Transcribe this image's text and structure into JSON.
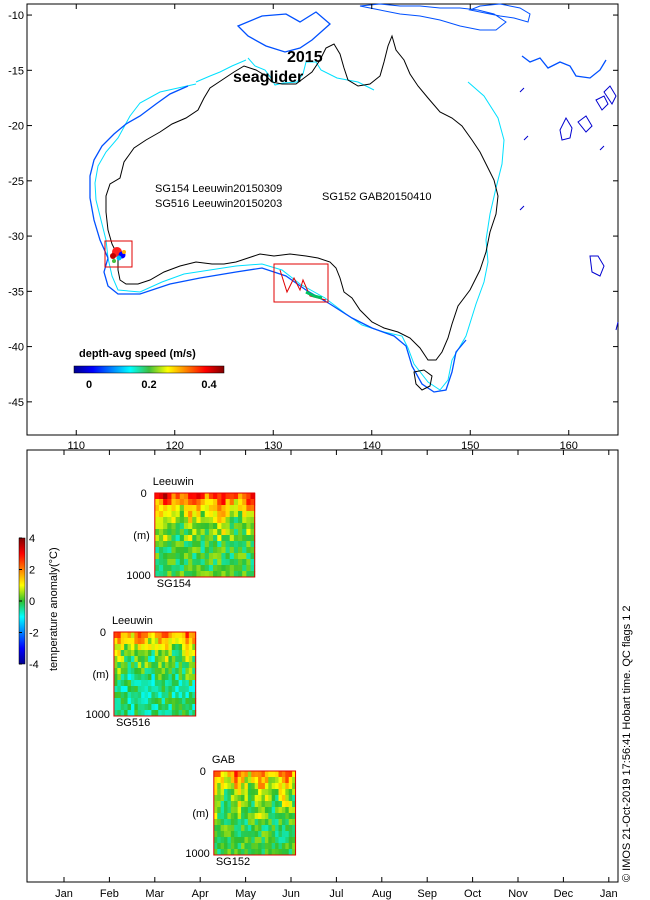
{
  "chart_data": [
    {
      "type": "map",
      "title_year": "2015",
      "title_name": "seaglider",
      "x_ticks": [
        110,
        120,
        130,
        140,
        150,
        160
      ],
      "y_ticks": [
        -10,
        -15,
        -20,
        -25,
        -30,
        -35,
        -40,
        -45
      ],
      "xlim": [
        105,
        165
      ],
      "ylim": [
        -48,
        -9
      ],
      "missions": [
        {
          "label": "SG154 Leeuwin20150309",
          "region": [
            113,
            115.7,
            -34.1,
            -31.9
          ]
        },
        {
          "label": "SG516 Leeuwin20150203",
          "region": [
            113,
            115.7,
            -34.1,
            -31.9
          ]
        },
        {
          "label": "SG152 GAB20150410",
          "region": [
            130,
            135.6,
            -36.3,
            -33
          ]
        }
      ],
      "colorbar": {
        "label": "depth-avg speed (m/s)",
        "ticks": [
          0,
          0.2,
          0.4
        ],
        "range": [
          0,
          0.5
        ]
      }
    },
    {
      "type": "heatmap",
      "x_months": [
        "Jan",
        "Feb",
        "Mar",
        "Apr",
        "May",
        "Jun",
        "Jul",
        "Aug",
        "Sep",
        "Oct",
        "Nov",
        "Dec",
        "Jan"
      ],
      "colorbar": {
        "label": "temperature anomaly(°C)",
        "ticks": [
          4,
          2,
          0,
          -2,
          -4
        ],
        "range": [
          -4,
          4
        ]
      },
      "depth_unit": "(m)",
      "depth_range": [
        0,
        1000
      ],
      "panels": [
        {
          "region": "Leeuwin",
          "glider": "SG154",
          "start_month": 2.0,
          "end_month": 4.2
        },
        {
          "region": "Leeuwin",
          "glider": "SG516",
          "start_month": 1.1,
          "end_month": 2.9
        },
        {
          "region": "GAB",
          "glider": "SG152",
          "start_month": 3.3,
          "end_month": 5.1
        }
      ]
    }
  ],
  "footer": "© IMOS 21-Oct-2019 17:56:41 Hobart time. QC flags 1  2"
}
